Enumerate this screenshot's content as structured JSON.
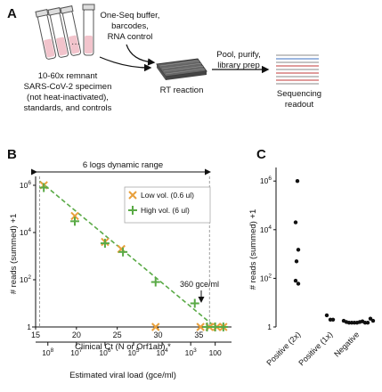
{
  "panel_labels": {
    "a": "A",
    "b": "B",
    "c": "C"
  },
  "panel_a": {
    "reagents": [
      "One-Seq buffer,",
      "barcodes,",
      "RNA control"
    ],
    "specimen": [
      "10-60x remnant",
      "SARS-CoV-2 specimen",
      "(not heat-inactivated),",
      "standards, and controls"
    ],
    "rt_label": "RT reaction",
    "pool_label": [
      "Pool, purify,",
      "library prep"
    ],
    "seq_label": [
      "Sequencing",
      "readout"
    ],
    "colors": {
      "tube_liquid": "#f2c4cc",
      "plate": "#444444",
      "seq_lines": [
        "#c23a3a",
        "#3a6fc2",
        "#888888"
      ]
    }
  },
  "panel_b": {
    "dynamic_range_label": "6 logs dynamic range",
    "annotation": "360 gce/ml",
    "xlabel": "Clinical Ct (N or Orf1ab) *",
    "ylabel": "# reads (summed) +1",
    "x2label": "Estimated viral load (gce/ml)",
    "x_ticks": [
      "15",
      "20",
      "25",
      "30",
      "35"
    ],
    "y_ticks": [
      {
        "base": "10",
        "exp": "6"
      },
      {
        "base": "10",
        "exp": "4"
      },
      {
        "base": "10",
        "exp": "2"
      },
      {
        "base": "1",
        "exp": ""
      }
    ],
    "x2_ticks": [
      {
        "base": "10",
        "exp": "8"
      },
      {
        "base": "10",
        "exp": "7"
      },
      {
        "base": "10",
        "exp": "6"
      },
      {
        "base": "10",
        "exp": "5"
      },
      {
        "base": "10",
        "exp": "4"
      },
      {
        "base": "10",
        "exp": "3"
      },
      {
        "base": "100",
        "exp": ""
      }
    ],
    "legend": [
      {
        "label": "Low vol. (0.6 ul)",
        "color": "#e8a03c",
        "marker": "x"
      },
      {
        "label": "High vol. (6 ul)",
        "color": "#5aaa46",
        "marker": "+"
      }
    ]
  },
  "panel_c": {
    "ylabel": "# reads (summed) +1",
    "y_ticks": [
      {
        "base": "10",
        "exp": "6"
      },
      {
        "base": "10",
        "exp": "4"
      },
      {
        "base": "10",
        "exp": "2"
      },
      {
        "base": "1",
        "exp": ""
      }
    ],
    "categories": [
      "Positive (2x)",
      "Positive (1x)",
      "Negative"
    ]
  },
  "chart_data": [
    {
      "type": "scatter",
      "xlabel": "Clinical Ct (N or Orf1ab) *",
      "ylabel": "# reads (summed) +1",
      "xlim": [
        15,
        39
      ],
      "ylim": [
        1,
        2000000
      ],
      "y_scale": "log",
      "series": [
        {
          "name": "Low vol. (0.6 ul)",
          "marker": "x",
          "color": "#e8a03c",
          "x": [
            16,
            19.8,
            23.5,
            25.5,
            29.7,
            35.2,
            36.3,
            37.2,
            38
          ],
          "y": [
            1000000,
            50000,
            4000,
            2000,
            1,
            1,
            1,
            1,
            1
          ]
        },
        {
          "name": "High vol. (6 ul)",
          "marker": "+",
          "color": "#5aaa46",
          "x": [
            16,
            19.8,
            23.5,
            25.7,
            29.7,
            34.5,
            36,
            37,
            38
          ],
          "y": [
            800000,
            30000,
            3500,
            1500,
            80,
            10,
            1,
            1,
            1
          ]
        }
      ],
      "fit_line": {
        "x": [
          15.5,
          37
        ],
        "y": [
          1500000,
          1
        ],
        "color": "#5aaa46",
        "style": "dashed"
      },
      "reference_lines": [
        {
          "x": 15.5
        },
        {
          "x": 36.3
        }
      ]
    },
    {
      "type": "scatter",
      "ylabel": "# reads (summed) +1",
      "y_scale": "log",
      "ylim": [
        1,
        2000000
      ],
      "categories": [
        "Positive (2x)",
        "Positive (1x)",
        "Negative"
      ],
      "series": [
        {
          "name": "",
          "values": [
            [
              1000000,
              20000,
              1500,
              500,
              80,
              60
            ],
            [
              3,
              2,
              2
            ],
            [
              1.8,
              1.6,
              1.5,
              1.5,
              1.5,
              1.5,
              1.6,
              1.7,
              1.5,
              1.5,
              2.2,
              1.8
            ]
          ]
        }
      ]
    }
  ]
}
